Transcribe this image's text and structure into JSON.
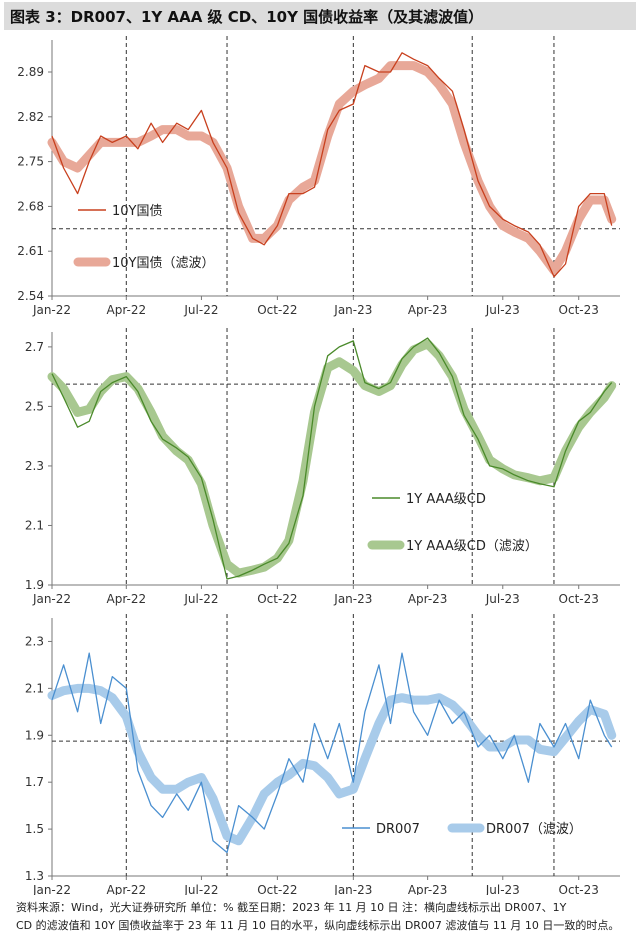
{
  "title": "图表 3：DR007、1Y AAA 级 CD、10Y 国债收益率（及其滤波值）",
  "footer": {
    "line1": "资料来源：Wind，光大证券研究所     单位：%     截至日期：2023 年 11 月 10 日     注：横向虚线标示出 DR007、1Y",
    "line2": "CD 的滤波值和 10Y 国债收益率于 23 年 11 月 10 日的水平，纵向虚线标示出 DR007 滤波值与 11 月 10 日一致的时点。"
  },
  "colors": {
    "bond_raw": "#c8401e",
    "bond_filter": "#e8a898",
    "cd_raw": "#4a8a2a",
    "cd_filter": "#a8c890",
    "dr_raw": "#4a8fd0",
    "dr_filter": "#a8cbea"
  },
  "chart_data": [
    {
      "type": "line",
      "ylim": [
        2.54,
        2.94
      ],
      "yticks": [
        "2.54",
        "2.61",
        "2.68",
        "2.75",
        "2.82",
        "2.89"
      ],
      "xticks": [
        "Jan-22",
        "Apr-22",
        "Jul-22",
        "Oct-22",
        "Jan-23",
        "Apr-23",
        "Jul-23",
        "Oct-23"
      ],
      "hline": 2.645,
      "legend": [
        "10Y国债",
        "10Y国债（滤波）"
      ],
      "series": [
        {
          "name": "10Y国债",
          "x": [
            "2022-01-01",
            "2022-01-15",
            "2022-02-01",
            "2022-02-15",
            "2022-03-01",
            "2022-03-15",
            "2022-04-01",
            "2022-04-15",
            "2022-05-01",
            "2022-05-15",
            "2022-06-01",
            "2022-06-15",
            "2022-07-01",
            "2022-07-15",
            "2022-08-01",
            "2022-08-15",
            "2022-09-01",
            "2022-09-15",
            "2022-10-01",
            "2022-10-15",
            "2022-11-01",
            "2022-11-15",
            "2022-12-01",
            "2022-12-15",
            "2023-01-01",
            "2023-01-15",
            "2023-02-01",
            "2023-02-15",
            "2023-03-01",
            "2023-03-15",
            "2023-04-01",
            "2023-04-15",
            "2023-05-01",
            "2023-05-15",
            "2023-06-01",
            "2023-06-15",
            "2023-07-01",
            "2023-07-15",
            "2023-08-01",
            "2023-08-15",
            "2023-09-01",
            "2023-09-15",
            "2023-10-01",
            "2023-10-15",
            "2023-11-01",
            "2023-11-10"
          ],
          "values": [
            2.79,
            2.74,
            2.7,
            2.75,
            2.79,
            2.78,
            2.79,
            2.77,
            2.81,
            2.78,
            2.81,
            2.8,
            2.83,
            2.78,
            2.74,
            2.67,
            2.63,
            2.62,
            2.65,
            2.7,
            2.7,
            2.71,
            2.8,
            2.83,
            2.84,
            2.9,
            2.89,
            2.89,
            2.92,
            2.91,
            2.9,
            2.88,
            2.86,
            2.8,
            2.72,
            2.68,
            2.66,
            2.65,
            2.64,
            2.62,
            2.57,
            2.59,
            2.68,
            2.7,
            2.7,
            2.65
          ]
        },
        {
          "name": "10Y国债（滤波）",
          "x": [
            "2022-01-01",
            "2022-01-15",
            "2022-02-01",
            "2022-02-15",
            "2022-03-01",
            "2022-03-15",
            "2022-04-01",
            "2022-04-15",
            "2022-05-01",
            "2022-05-15",
            "2022-06-01",
            "2022-06-15",
            "2022-07-01",
            "2022-07-15",
            "2022-08-01",
            "2022-08-15",
            "2022-09-01",
            "2022-09-15",
            "2022-10-01",
            "2022-10-15",
            "2022-11-01",
            "2022-11-15",
            "2022-12-01",
            "2022-12-15",
            "2023-01-01",
            "2023-01-15",
            "2023-02-01",
            "2023-02-15",
            "2023-03-01",
            "2023-03-15",
            "2023-04-01",
            "2023-04-15",
            "2023-05-01",
            "2023-05-15",
            "2023-06-01",
            "2023-06-15",
            "2023-07-01",
            "2023-07-15",
            "2023-08-01",
            "2023-08-15",
            "2023-09-01",
            "2023-09-15",
            "2023-10-01",
            "2023-10-15",
            "2023-11-01",
            "2023-11-10"
          ],
          "values": [
            2.78,
            2.75,
            2.74,
            2.76,
            2.78,
            2.78,
            2.78,
            2.78,
            2.79,
            2.8,
            2.8,
            2.79,
            2.79,
            2.78,
            2.74,
            2.68,
            2.63,
            2.63,
            2.65,
            2.69,
            2.71,
            2.72,
            2.79,
            2.84,
            2.86,
            2.87,
            2.88,
            2.9,
            2.9,
            2.9,
            2.89,
            2.87,
            2.84,
            2.78,
            2.72,
            2.68,
            2.65,
            2.64,
            2.63,
            2.61,
            2.58,
            2.61,
            2.66,
            2.69,
            2.69,
            2.66
          ]
        }
      ]
    },
    {
      "type": "line",
      "ylim": [
        1.9,
        2.75
      ],
      "yticks": [
        "1.9",
        "2.1",
        "2.3",
        "2.5",
        "2.7"
      ],
      "xticks": [
        "Jan-22",
        "Apr-22",
        "Jul-22",
        "Oct-22",
        "Jan-23",
        "Apr-23",
        "Jul-23",
        "Oct-23"
      ],
      "hline": 2.575,
      "legend": [
        "1Y AAA级CD",
        "1Y AAA级CD（滤波）"
      ],
      "series": [
        {
          "name": "1Y AAA级CD",
          "x": [
            "2022-01-01",
            "2022-01-15",
            "2022-02-01",
            "2022-02-15",
            "2022-03-01",
            "2022-03-15",
            "2022-04-01",
            "2022-04-15",
            "2022-05-01",
            "2022-05-15",
            "2022-06-01",
            "2022-06-15",
            "2022-07-01",
            "2022-07-15",
            "2022-08-01",
            "2022-08-15",
            "2022-09-01",
            "2022-09-15",
            "2022-10-01",
            "2022-10-15",
            "2022-11-01",
            "2022-11-15",
            "2022-12-01",
            "2022-12-15",
            "2023-01-01",
            "2023-01-15",
            "2023-02-01",
            "2023-02-15",
            "2023-03-01",
            "2023-03-15",
            "2023-04-01",
            "2023-04-15",
            "2023-05-01",
            "2023-05-15",
            "2023-06-01",
            "2023-06-15",
            "2023-07-01",
            "2023-07-15",
            "2023-08-01",
            "2023-08-15",
            "2023-09-01",
            "2023-09-15",
            "2023-10-01",
            "2023-10-15",
            "2023-11-01",
            "2023-11-10"
          ],
          "values": [
            2.61,
            2.53,
            2.43,
            2.45,
            2.55,
            2.58,
            2.6,
            2.55,
            2.45,
            2.39,
            2.36,
            2.33,
            2.26,
            2.12,
            1.92,
            1.93,
            1.95,
            1.97,
            1.99,
            2.04,
            2.2,
            2.5,
            2.67,
            2.7,
            2.72,
            2.58,
            2.56,
            2.58,
            2.66,
            2.7,
            2.73,
            2.68,
            2.6,
            2.47,
            2.39,
            2.3,
            2.29,
            2.27,
            2.25,
            2.24,
            2.23,
            2.35,
            2.45,
            2.48,
            2.55,
            2.58
          ]
        },
        {
          "name": "1Y AAA级CD（滤波）",
          "x": [
            "2022-01-01",
            "2022-01-15",
            "2022-02-01",
            "2022-02-15",
            "2022-03-01",
            "2022-03-15",
            "2022-04-01",
            "2022-04-15",
            "2022-05-01",
            "2022-05-15",
            "2022-06-01",
            "2022-06-15",
            "2022-07-01",
            "2022-07-15",
            "2022-08-01",
            "2022-08-15",
            "2022-09-01",
            "2022-09-15",
            "2022-10-01",
            "2022-10-15",
            "2022-11-01",
            "2022-11-15",
            "2022-12-01",
            "2022-12-15",
            "2023-01-01",
            "2023-01-15",
            "2023-02-01",
            "2023-02-15",
            "2023-03-01",
            "2023-03-15",
            "2023-04-01",
            "2023-04-15",
            "2023-05-01",
            "2023-05-15",
            "2023-06-01",
            "2023-06-15",
            "2023-07-01",
            "2023-07-15",
            "2023-08-01",
            "2023-08-15",
            "2023-09-01",
            "2023-09-15",
            "2023-10-01",
            "2023-10-15",
            "2023-11-01",
            "2023-11-10"
          ],
          "values": [
            2.6,
            2.56,
            2.48,
            2.49,
            2.55,
            2.59,
            2.6,
            2.56,
            2.48,
            2.4,
            2.35,
            2.32,
            2.24,
            2.1,
            1.97,
            1.94,
            1.95,
            1.96,
            1.99,
            2.05,
            2.25,
            2.48,
            2.63,
            2.65,
            2.62,
            2.57,
            2.55,
            2.57,
            2.64,
            2.69,
            2.71,
            2.67,
            2.6,
            2.49,
            2.4,
            2.32,
            2.29,
            2.27,
            2.26,
            2.25,
            2.26,
            2.35,
            2.43,
            2.48,
            2.53,
            2.57
          ]
        }
      ]
    },
    {
      "type": "line",
      "ylim": [
        1.3,
        2.4
      ],
      "yticks": [
        "1.3",
        "1.5",
        "1.7",
        "1.9",
        "2.1",
        "2.3"
      ],
      "xticks": [
        "Jan-22",
        "Apr-22",
        "Jul-22",
        "Oct-22",
        "Jan-23",
        "Apr-23",
        "Jul-23",
        "Oct-23"
      ],
      "hline": 1.875,
      "legend": [
        "DR007",
        "DR007（滤波）"
      ],
      "series": [
        {
          "name": "DR007",
          "x": [
            "2022-01-01",
            "2022-01-15",
            "2022-02-01",
            "2022-02-15",
            "2022-03-01",
            "2022-03-15",
            "2022-04-01",
            "2022-04-15",
            "2022-05-01",
            "2022-05-15",
            "2022-06-01",
            "2022-06-15",
            "2022-07-01",
            "2022-07-15",
            "2022-08-01",
            "2022-08-15",
            "2022-09-01",
            "2022-09-15",
            "2022-10-01",
            "2022-10-15",
            "2022-11-01",
            "2022-11-15",
            "2022-12-01",
            "2022-12-15",
            "2023-01-01",
            "2023-01-15",
            "2023-02-01",
            "2023-02-15",
            "2023-03-01",
            "2023-03-15",
            "2023-04-01",
            "2023-04-15",
            "2023-05-01",
            "2023-05-15",
            "2023-06-01",
            "2023-06-15",
            "2023-07-01",
            "2023-07-15",
            "2023-08-01",
            "2023-08-15",
            "2023-09-01",
            "2023-09-15",
            "2023-10-01",
            "2023-10-15",
            "2023-11-01",
            "2023-11-10"
          ],
          "values": [
            2.05,
            2.2,
            2.0,
            2.25,
            1.95,
            2.15,
            2.1,
            1.75,
            1.6,
            1.55,
            1.65,
            1.58,
            1.7,
            1.45,
            1.4,
            1.6,
            1.55,
            1.5,
            1.65,
            1.8,
            1.7,
            1.95,
            1.8,
            1.95,
            1.7,
            2.0,
            2.2,
            1.95,
            2.25,
            2.0,
            1.9,
            2.05,
            1.95,
            2.0,
            1.85,
            1.9,
            1.8,
            1.9,
            1.7,
            1.95,
            1.85,
            1.95,
            1.8,
            2.05,
            1.9,
            1.85
          ]
        },
        {
          "name": "DR007（滤波）",
          "x": [
            "2022-01-01",
            "2022-01-15",
            "2022-02-01",
            "2022-02-15",
            "2022-03-01",
            "2022-03-15",
            "2022-04-01",
            "2022-04-15",
            "2022-05-01",
            "2022-05-15",
            "2022-06-01",
            "2022-06-15",
            "2022-07-01",
            "2022-07-15",
            "2022-08-01",
            "2022-08-15",
            "2022-09-01",
            "2022-09-15",
            "2022-10-01",
            "2022-10-15",
            "2022-11-01",
            "2022-11-15",
            "2022-12-01",
            "2022-12-15",
            "2023-01-01",
            "2023-01-15",
            "2023-02-01",
            "2023-02-15",
            "2023-03-01",
            "2023-03-15",
            "2023-04-01",
            "2023-04-15",
            "2023-05-01",
            "2023-05-15",
            "2023-06-01",
            "2023-06-15",
            "2023-07-01",
            "2023-07-15",
            "2023-08-01",
            "2023-08-15",
            "2023-09-01",
            "2023-09-15",
            "2023-10-01",
            "2023-10-15",
            "2023-11-01",
            "2023-11-10"
          ],
          "values": [
            2.07,
            2.09,
            2.1,
            2.1,
            2.09,
            2.06,
            1.98,
            1.83,
            1.72,
            1.67,
            1.67,
            1.7,
            1.72,
            1.63,
            1.47,
            1.45,
            1.55,
            1.65,
            1.7,
            1.73,
            1.78,
            1.77,
            1.72,
            1.65,
            1.67,
            1.8,
            1.95,
            2.05,
            2.06,
            2.05,
            2.05,
            2.06,
            2.03,
            1.98,
            1.9,
            1.85,
            1.85,
            1.88,
            1.88,
            1.84,
            1.83,
            1.89,
            1.96,
            2.01,
            1.99,
            1.9
          ]
        }
      ]
    }
  ]
}
